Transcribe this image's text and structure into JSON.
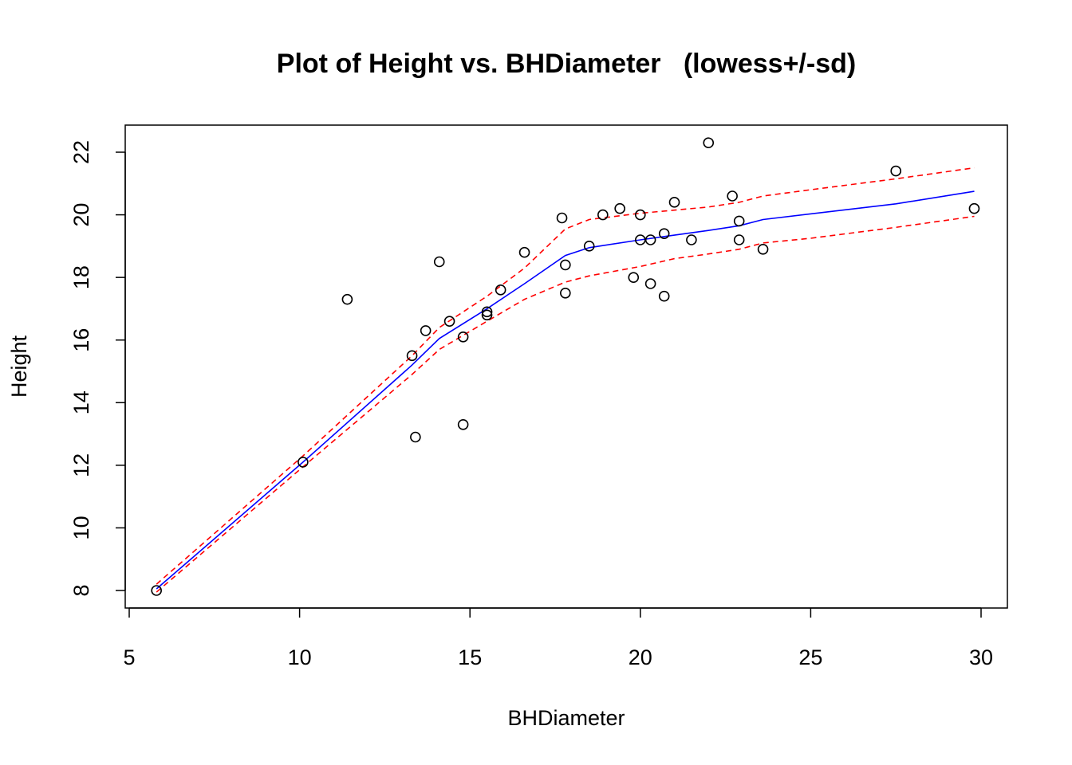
{
  "chart_data": {
    "type": "scatter",
    "title": "Plot of Height vs. BHDiameter   (lowess+/-sd)",
    "xlabel": "BHDiameter",
    "ylabel": "Height",
    "xlim": [
      5,
      30
    ],
    "ylim": [
      8,
      22
    ],
    "x_ticks": [
      5,
      10,
      15,
      20,
      25,
      30
    ],
    "y_ticks": [
      8,
      10,
      12,
      14,
      16,
      18,
      20,
      22
    ],
    "grid": false,
    "legend": "none",
    "points": [
      {
        "x": 5.8,
        "y": 8.0
      },
      {
        "x": 10.1,
        "y": 12.1
      },
      {
        "x": 11.4,
        "y": 17.3
      },
      {
        "x": 13.3,
        "y": 15.5
      },
      {
        "x": 13.4,
        "y": 12.9
      },
      {
        "x": 13.7,
        "y": 16.3
      },
      {
        "x": 14.1,
        "y": 18.5
      },
      {
        "x": 14.4,
        "y": 16.6
      },
      {
        "x": 14.8,
        "y": 16.1
      },
      {
        "x": 14.8,
        "y": 13.3
      },
      {
        "x": 15.5,
        "y": 16.8
      },
      {
        "x": 15.5,
        "y": 16.9
      },
      {
        "x": 15.9,
        "y": 17.6
      },
      {
        "x": 16.6,
        "y": 18.8
      },
      {
        "x": 17.7,
        "y": 19.9
      },
      {
        "x": 17.8,
        "y": 18.4
      },
      {
        "x": 17.8,
        "y": 17.5
      },
      {
        "x": 18.5,
        "y": 19.0
      },
      {
        "x": 18.9,
        "y": 20.0
      },
      {
        "x": 19.4,
        "y": 20.2
      },
      {
        "x": 19.8,
        "y": 18.0
      },
      {
        "x": 20.0,
        "y": 20.0
      },
      {
        "x": 20.0,
        "y": 19.2
      },
      {
        "x": 20.3,
        "y": 19.2
      },
      {
        "x": 20.3,
        "y": 17.8
      },
      {
        "x": 20.7,
        "y": 19.4
      },
      {
        "x": 20.7,
        "y": 17.4
      },
      {
        "x": 21.0,
        "y": 20.4
      },
      {
        "x": 21.5,
        "y": 19.2
      },
      {
        "x": 22.0,
        "y": 22.3
      },
      {
        "x": 22.7,
        "y": 20.6
      },
      {
        "x": 22.9,
        "y": 19.8
      },
      {
        "x": 22.9,
        "y": 19.2
      },
      {
        "x": 23.6,
        "y": 18.9
      },
      {
        "x": 27.5,
        "y": 21.4
      },
      {
        "x": 29.8,
        "y": 20.2
      }
    ],
    "series": [
      {
        "type": "line",
        "color": "#0000ff",
        "dash": "solid",
        "values": [
          [
            5.8,
            8.05
          ],
          [
            10.1,
            12.1
          ],
          [
            13.3,
            15.2
          ],
          [
            14.1,
            16.05
          ],
          [
            15.5,
            17.0
          ],
          [
            16.6,
            17.8
          ],
          [
            17.8,
            18.7
          ],
          [
            18.5,
            18.95
          ],
          [
            20.0,
            19.2
          ],
          [
            21.0,
            19.35
          ],
          [
            22.0,
            19.5
          ],
          [
            22.9,
            19.65
          ],
          [
            23.6,
            19.85
          ],
          [
            27.5,
            20.35
          ],
          [
            29.8,
            20.75
          ]
        ]
      },
      {
        "type": "line",
        "color": "#ff0000",
        "dash": "dashed",
        "values": [
          [
            5.8,
            8.2
          ],
          [
            10.1,
            12.3
          ],
          [
            13.3,
            15.5
          ],
          [
            14.1,
            16.4
          ],
          [
            15.5,
            17.4
          ],
          [
            16.6,
            18.3
          ],
          [
            17.8,
            19.55
          ],
          [
            18.5,
            19.85
          ],
          [
            20.0,
            20.05
          ],
          [
            21.0,
            20.15
          ],
          [
            22.0,
            20.25
          ],
          [
            22.9,
            20.4
          ],
          [
            23.6,
            20.6
          ],
          [
            25.0,
            20.8
          ],
          [
            27.5,
            21.15
          ],
          [
            29.8,
            21.5
          ]
        ]
      },
      {
        "type": "line",
        "color": "#ff0000",
        "dash": "dashed",
        "values": [
          [
            5.8,
            7.95
          ],
          [
            10.1,
            11.95
          ],
          [
            13.3,
            14.9
          ],
          [
            14.1,
            15.7
          ],
          [
            15.5,
            16.6
          ],
          [
            16.6,
            17.3
          ],
          [
            17.8,
            17.85
          ],
          [
            18.5,
            18.05
          ],
          [
            20.0,
            18.35
          ],
          [
            21.0,
            18.6
          ],
          [
            22.0,
            18.75
          ],
          [
            22.9,
            18.9
          ],
          [
            23.6,
            19.1
          ],
          [
            25.0,
            19.25
          ],
          [
            27.5,
            19.6
          ],
          [
            29.8,
            19.95
          ]
        ]
      }
    ]
  }
}
